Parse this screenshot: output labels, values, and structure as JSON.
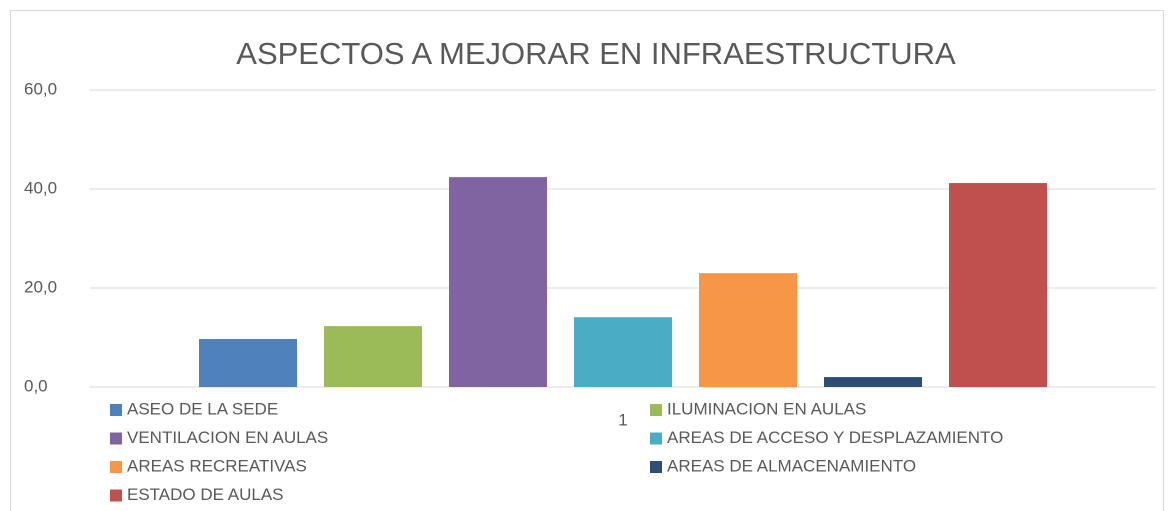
{
  "chart_data": {
    "type": "bar",
    "title": "ASPECTOS A MEJORAR EN INFRAESTRUCTURA",
    "categories": [
      "1"
    ],
    "series": [
      {
        "name": "ASEO DE LA SEDE",
        "color": "#4f81bd",
        "values": [
          9.7
        ]
      },
      {
        "name": "ILUMINACION EN AULAS",
        "color": "#9bbb59",
        "values": [
          12.3
        ]
      },
      {
        "name": "VENTILACION EN AULAS",
        "color": "#8064a2",
        "values": [
          42.4
        ]
      },
      {
        "name": "AREAS DE ACCESO Y DESPLAZAMIENTO",
        "color": "#4bacc6",
        "values": [
          14.1
        ]
      },
      {
        "name": "AREAS RECREATIVAS",
        "color": "#f79646",
        "values": [
          23.0
        ]
      },
      {
        "name": "AREAS DE ALMACENAMIENTO",
        "color": "#2c4d75",
        "values": [
          2.0
        ]
      },
      {
        "name": "ESTADO DE AULAS",
        "color": "#c0504d",
        "values": [
          41.2
        ]
      }
    ],
    "ylim": [
      0,
      60
    ],
    "yticks": [
      {
        "value": 0,
        "label": "0,0"
      },
      {
        "value": 20,
        "label": "20,0"
      },
      {
        "value": 40,
        "label": "40,0"
      },
      {
        "value": 60,
        "label": "60,0"
      }
    ],
    "grid": true
  }
}
